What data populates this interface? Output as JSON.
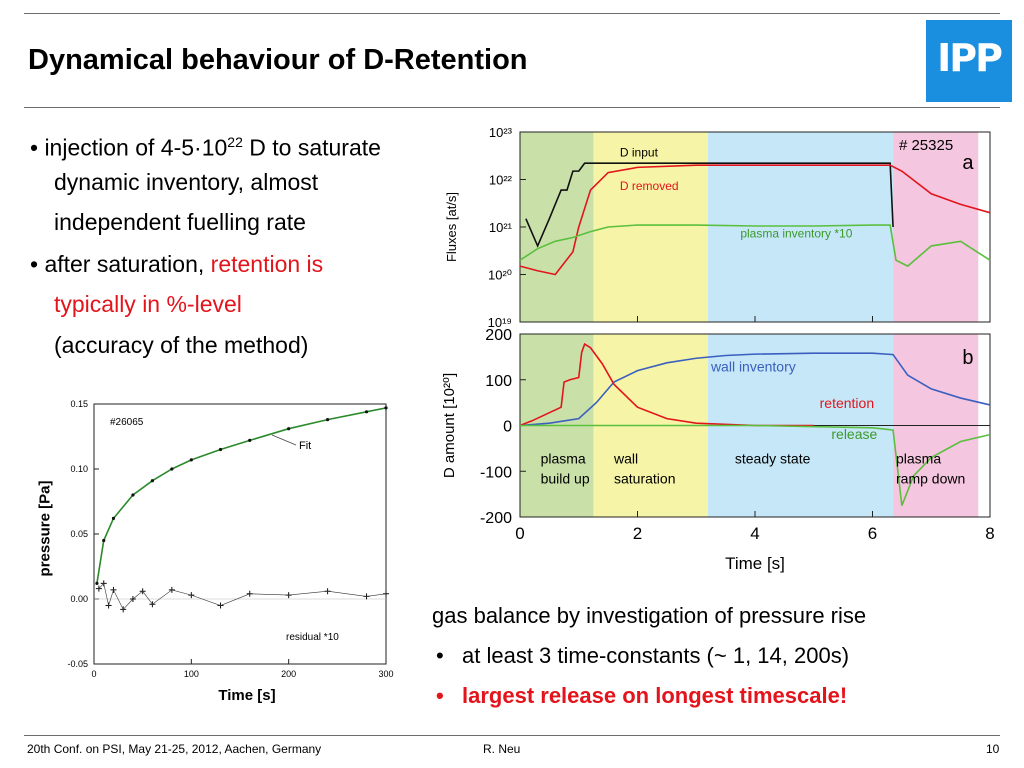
{
  "slide": {
    "title": "Dynamical behaviour of D-Retention",
    "logo_text": "IPP",
    "bullets": [
      {
        "prefix": "• injection of 4-5·10",
        "sup": "22",
        "suffix": " D to saturate",
        "lines": [
          "dynamic inventory, almost",
          "independent fuelling rate"
        ]
      },
      {
        "prefix": "• after saturation, ",
        "highlight": "retention is",
        "line2_red": "typically in %-level",
        "line3": "(accuracy of the method)"
      }
    ],
    "gas_balance": {
      "intro": "gas balance by investigation of pressure rise",
      "bullet_marker": "•",
      "item1": "at least 3 time-constants (~ 1, 14, 200s)",
      "item2": "largest release on longest timescale!"
    },
    "footer": {
      "left": "20th Conf. on  PSI, May 21-25, 2012, Aachen, Germany",
      "center": "R. Neu",
      "page": "10"
    },
    "colors": {
      "accent_red": "#e3141b",
      "logo_blue": "#1a8fe0"
    }
  },
  "chart_data": [
    {
      "type": "scatter",
      "shot_label": "#26065",
      "xlabel": "Time [s]",
      "ylabel": "pressure [Pa]",
      "xlim": [
        0,
        300
      ],
      "ylim": [
        -0.05,
        0.15
      ],
      "x_ticks": [
        "0",
        "100",
        "200",
        "300"
      ],
      "y_ticks": [
        "-0.05",
        "0.00",
        "0.05",
        "0.10",
        "0.15"
      ],
      "annotations": [
        "Fit",
        "residual *10"
      ],
      "series": [
        {
          "values_x": [
            3,
            10,
            20,
            40,
            60,
            80,
            100,
            130,
            160,
            200,
            240,
            280,
            300
          ],
          "values_y": [
            0.012,
            0.045,
            0.062,
            0.08,
            0.091,
            0.1,
            0.107,
            0.115,
            0.122,
            0.131,
            0.138,
            0.144,
            0.147
          ]
        },
        {
          "values_x": [
            5,
            10,
            15,
            20,
            30,
            40,
            50,
            60,
            80,
            100,
            130,
            160,
            200,
            240,
            280,
            300
          ],
          "values_y": [
            0.008,
            0.012,
            -0.005,
            0.007,
            -0.008,
            0.0,
            0.006,
            -0.004,
            0.007,
            0.003,
            -0.005,
            0.004,
            0.003,
            0.006,
            0.002,
            0.004
          ]
        }
      ]
    },
    {
      "type": "line",
      "panel_label": "a",
      "shot_label": "# 25325",
      "ylabel": "Fluxes [at/s]",
      "yscale": "log",
      "xlim": [
        0,
        8
      ],
      "ylim": [
        1e+19,
        1e+23
      ],
      "y_ticks": [
        "10¹⁹",
        "10²⁰",
        "10²¹",
        "10²²",
        "10²³"
      ],
      "series": [
        {
          "name": "D input",
          "x": [
            0.1,
            0.3,
            0.5,
            0.6,
            0.7,
            0.8,
            0.9,
            1.0,
            1.1,
            1.3,
            3,
            5,
            6.3,
            6.35
          ],
          "y": [
            1.5e+21,
            4e+20,
            1.5e+21,
            3e+21,
            6e+21,
            6e+21,
            1.5e+22,
            1.5e+22,
            2.2e+22,
            2.2e+22,
            2.2e+22,
            2.2e+22,
            2.2e+22,
            1e+21
          ]
        },
        {
          "name": "D removed",
          "x": [
            0,
            0.3,
            0.6,
            0.9,
            1.0,
            1.2,
            1.5,
            2,
            3,
            4,
            5,
            6,
            6.3,
            6.5,
            7,
            7.5,
            8
          ],
          "y": [
            1.5e+20,
            1.2e+20,
            1e+20,
            3e+20,
            1e+21,
            6e+21,
            1.4e+22,
            1.8e+22,
            2e+22,
            2e+22,
            2e+22,
            2e+22,
            2e+22,
            1.5e+22,
            5e+21,
            3e+21,
            2e+21
          ]
        },
        {
          "name": "plasma inventory *10",
          "x": [
            0,
            0.3,
            0.6,
            0.9,
            1.2,
            1.5,
            2,
            3,
            4,
            5,
            6,
            6.3,
            6.4,
            6.6,
            7,
            7.5,
            8
          ],
          "y": [
            2e+20,
            3.5e+20,
            5e+20,
            6e+20,
            8e+20,
            1e+21,
            1.1e+21,
            1.1e+21,
            1.05e+21,
            1.05e+21,
            1.1e+21,
            1.1e+21,
            2e+20,
            1.5e+20,
            4e+20,
            5e+20,
            2e+20
          ]
        }
      ]
    },
    {
      "type": "line",
      "panel_label": "b",
      "xlabel": "Time [s]",
      "ylabel": "D amount [10²⁰]",
      "xlim": [
        0,
        8
      ],
      "ylim": [
        -200,
        200
      ],
      "x_ticks": [
        "0",
        "2",
        "4",
        "6",
        "8"
      ],
      "y_ticks": [
        "-200",
        "-100",
        "0",
        "100",
        "200"
      ],
      "phases": [
        {
          "label": "plasma build up",
          "lines": [
            "plasma",
            "build up"
          ],
          "from": 0,
          "to": 1.25,
          "color": "#c9e1a9"
        },
        {
          "label": "wall saturation",
          "lines": [
            "wall",
            "saturation"
          ],
          "from": 1.25,
          "to": 3.2,
          "color": "#f6f4a6"
        },
        {
          "label": "steady state",
          "lines": [
            "steady state"
          ],
          "from": 3.2,
          "to": 6.35,
          "color": "#c5e7f7"
        },
        {
          "label": "plasma ramp down",
          "lines": [
            "plasma",
            "ramp down"
          ],
          "from": 6.35,
          "to": 7.8,
          "color": "#f4c6df"
        }
      ],
      "series": [
        {
          "name": "wall inventory",
          "x": [
            0,
            0.5,
            1.0,
            1.3,
            1.6,
            2,
            2.5,
            3,
            3.5,
            4,
            5,
            6,
            6.35,
            6.6,
            7,
            7.5,
            8
          ],
          "y": [
            0,
            5,
            15,
            50,
            95,
            120,
            137,
            147,
            153,
            156,
            158,
            158,
            155,
            110,
            80,
            60,
            45
          ]
        },
        {
          "name": "retention",
          "x": [
            0,
            0.2,
            0.5,
            0.7,
            0.75,
            0.85,
            1.0,
            1.05,
            1.1,
            1.2,
            1.4,
            1.6,
            2,
            2.5,
            3,
            4,
            5
          ],
          "y": [
            0,
            10,
            28,
            40,
            95,
            100,
            105,
            160,
            178,
            170,
            135,
            90,
            40,
            15,
            5,
            0,
            0
          ]
        },
        {
          "name": "release",
          "x": [
            0,
            2,
            4,
            6,
            6.35,
            6.5,
            6.7,
            7,
            7.5,
            8
          ],
          "y": [
            0,
            0,
            0,
            -5,
            -10,
            -175,
            -110,
            -70,
            -35,
            -20
          ]
        }
      ]
    }
  ]
}
